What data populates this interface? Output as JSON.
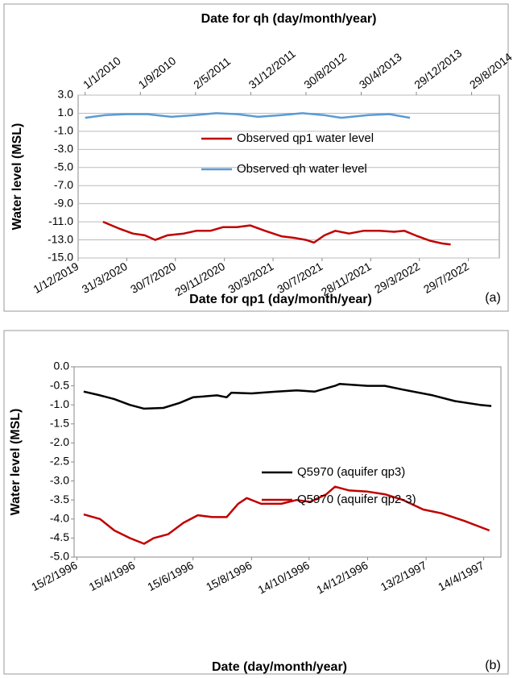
{
  "chart_data": [
    {
      "type": "line",
      "x2label": "Date for qh (day/month/year)",
      "xlabel": "Date for qp1 (day/month/year)",
      "ylabel": "Water level (MSL)",
      "panel_label": "(a)",
      "grid": true,
      "legend": "center",
      "ylim": [
        -15,
        3
      ],
      "yticks": [
        {
          "value": -15,
          "label": "-15.0"
        },
        {
          "value": -13,
          "label": "-13.0"
        },
        {
          "value": -11,
          "label": "-11.0"
        },
        {
          "value": -9,
          "label": "-9.0"
        },
        {
          "value": -7,
          "label": "-7.0"
        },
        {
          "value": -5,
          "label": "-5.0"
        },
        {
          "value": -3,
          "label": "-3.0"
        },
        {
          "value": -1,
          "label": "-1.0"
        },
        {
          "value": 1,
          "label": "1.0"
        },
        {
          "value": 3,
          "label": "3.0"
        }
      ],
      "xlim": [
        "2019-12-01",
        "2022-10-14"
      ],
      "xticks": [
        {
          "value": "2019-12-01",
          "label": "1/12/2019"
        },
        {
          "value": "2020-03-31",
          "label": "31/3/2020"
        },
        {
          "value": "2020-07-30",
          "label": "30/7/2020"
        },
        {
          "value": "2020-11-29",
          "label": "29/11/2020"
        },
        {
          "value": "2021-03-30",
          "label": "30/3/2021"
        },
        {
          "value": "2021-07-30",
          "label": "30/7/2021"
        },
        {
          "value": "2021-11-28",
          "label": "28/11/2021"
        },
        {
          "value": "2022-03-29",
          "label": "29/3/2022"
        },
        {
          "value": "2022-07-29",
          "label": "29/7/2022"
        }
      ],
      "x2lim": [
        "2009-12-01",
        "2014-12-29"
      ],
      "x2ticks": [
        {
          "value": "2010-01-01",
          "label": "1/1/2010"
        },
        {
          "value": "2010-09-01",
          "label": "1/9/2010"
        },
        {
          "value": "2011-05-02",
          "label": "2/5/2011"
        },
        {
          "value": "2011-12-31",
          "label": "31/12/2011"
        },
        {
          "value": "2012-08-30",
          "label": "30/8/2012"
        },
        {
          "value": "2013-04-30",
          "label": "30/4/2013"
        },
        {
          "value": "2013-12-29",
          "label": "29/12/2013"
        },
        {
          "value": "2014-08-29",
          "label": "29/8/2014"
        }
      ],
      "series": [
        {
          "name": "Observed qp1 water level",
          "color": "#c00000",
          "x": [
            "2020-02-01",
            "2020-03-15",
            "2020-04-15",
            "2020-05-15",
            "2020-06-10",
            "2020-07-10",
            "2020-08-20",
            "2020-09-20",
            "2020-10-25",
            "2020-11-25",
            "2020-12-30",
            "2021-02-01",
            "2021-03-10",
            "2021-04-20",
            "2021-05-25",
            "2021-06-20",
            "2021-07-10",
            "2021-08-05",
            "2021-09-01",
            "2021-10-05",
            "2021-11-10",
            "2021-12-20",
            "2022-01-25",
            "2022-02-20",
            "2022-03-25",
            "2022-04-25",
            "2022-05-25",
            "2022-06-15"
          ],
          "values": [
            -11.0,
            -11.8,
            -12.3,
            -12.5,
            -13.0,
            -12.5,
            -12.3,
            -12.0,
            -12.0,
            -11.6,
            -11.6,
            -11.4,
            -12.0,
            -12.6,
            -12.8,
            -13.0,
            -13.3,
            -12.5,
            -12.0,
            -12.3,
            -12.0,
            -12.0,
            -12.1,
            -12.0,
            -12.6,
            -13.1,
            -13.4,
            -13.5
          ]
        },
        {
          "name": "Observed qh water level",
          "color": "#5b9bd5",
          "axis": "x2",
          "x": [
            "2010-01-01",
            "2010-04-01",
            "2010-07-01",
            "2010-10-01",
            "2011-01-15",
            "2011-05-01",
            "2011-08-01",
            "2011-11-01",
            "2012-02-01",
            "2012-05-15",
            "2012-08-15",
            "2012-11-15",
            "2013-02-01",
            "2013-06-01",
            "2013-09-01",
            "2013-12-01"
          ],
          "values": [
            0.5,
            0.8,
            0.9,
            0.9,
            0.6,
            0.8,
            1.0,
            0.9,
            0.6,
            0.8,
            1.0,
            0.8,
            0.5,
            0.8,
            0.9,
            0.5
          ]
        }
      ]
    },
    {
      "type": "line",
      "xlabel": "Date (day/month/year)",
      "ylabel": "Water level (MSL)",
      "panel_label": "(b)",
      "grid": false,
      "legend": "center-right",
      "ylim": [
        -5,
        0
      ],
      "yticks": [
        {
          "value": -5,
          "label": "-5.0"
        },
        {
          "value": -4.5,
          "label": "-4.5"
        },
        {
          "value": -4,
          "label": "-4.0"
        },
        {
          "value": -3.5,
          "label": "-3.5"
        },
        {
          "value": -3,
          "label": "-3.0"
        },
        {
          "value": -2.5,
          "label": "-2.5"
        },
        {
          "value": -2,
          "label": "-2.0"
        },
        {
          "value": -1.5,
          "label": "-1.5"
        },
        {
          "value": -1,
          "label": "-1.0"
        },
        {
          "value": -0.5,
          "label": "-0.5"
        },
        {
          "value": 0,
          "label": "0.0"
        }
      ],
      "xlim": [
        "1996-02-12",
        "1997-05-02"
      ],
      "xticks": [
        {
          "value": "1996-02-15",
          "label": "15/2/1996"
        },
        {
          "value": "1996-04-15",
          "label": "15/4/1996"
        },
        {
          "value": "1996-06-15",
          "label": "15/6/1996"
        },
        {
          "value": "1996-08-15",
          "label": "15/8/1996"
        },
        {
          "value": "1996-10-14",
          "label": "14/10/1996"
        },
        {
          "value": "1996-12-14",
          "label": "14/12/1996"
        },
        {
          "value": "1997-02-13",
          "label": "13/2/1997"
        },
        {
          "value": "1997-04-14",
          "label": "14/4/1997"
        }
      ],
      "series": [
        {
          "name": "Q5970 (aquifer qp3)",
          "color": "#000000",
          "x": [
            "1996-02-22",
            "1996-03-10",
            "1996-03-25",
            "1996-04-10",
            "1996-04-25",
            "1996-05-15",
            "1996-06-01",
            "1996-06-15",
            "1996-07-10",
            "1996-07-20",
            "1996-07-25",
            "1996-08-15",
            "1996-09-10",
            "1996-10-01",
            "1996-10-20",
            "1996-11-10",
            "1996-11-15",
            "1996-12-14",
            "1997-01-01",
            "1997-01-20",
            "1997-02-20",
            "1997-03-15",
            "1997-04-10",
            "1997-04-22"
          ],
          "values": [
            -0.65,
            -0.75,
            -0.85,
            -1.0,
            -1.1,
            -1.08,
            -0.95,
            -0.8,
            -0.75,
            -0.8,
            -0.68,
            -0.7,
            -0.65,
            -0.62,
            -0.65,
            -0.5,
            -0.45,
            -0.5,
            -0.5,
            -0.6,
            -0.75,
            -0.9,
            -1.0,
            -1.03
          ]
        },
        {
          "name": "Q5970 (aquifer qp2-3)",
          "color": "#c00000",
          "x": [
            "1996-02-22",
            "1996-03-10",
            "1996-03-25",
            "1996-04-10",
            "1996-04-25",
            "1996-05-05",
            "1996-05-20",
            "1996-06-05",
            "1996-06-20",
            "1996-07-05",
            "1996-07-20",
            "1996-08-01",
            "1996-08-10",
            "1996-08-25",
            "1996-09-15",
            "1996-10-01",
            "1996-10-15",
            "1996-11-01",
            "1996-11-10",
            "1996-11-25",
            "1996-12-14",
            "1997-01-01",
            "1997-01-20",
            "1997-02-10",
            "1997-03-01",
            "1997-03-25",
            "1997-04-20"
          ],
          "values": [
            -3.88,
            -4.0,
            -4.3,
            -4.5,
            -4.65,
            -4.5,
            -4.4,
            -4.1,
            -3.9,
            -3.95,
            -3.95,
            -3.6,
            -3.45,
            -3.6,
            -3.6,
            -3.5,
            -3.55,
            -3.35,
            -3.15,
            -3.25,
            -3.28,
            -3.35,
            -3.5,
            -3.75,
            -3.85,
            -4.05,
            -4.3
          ]
        }
      ]
    }
  ]
}
